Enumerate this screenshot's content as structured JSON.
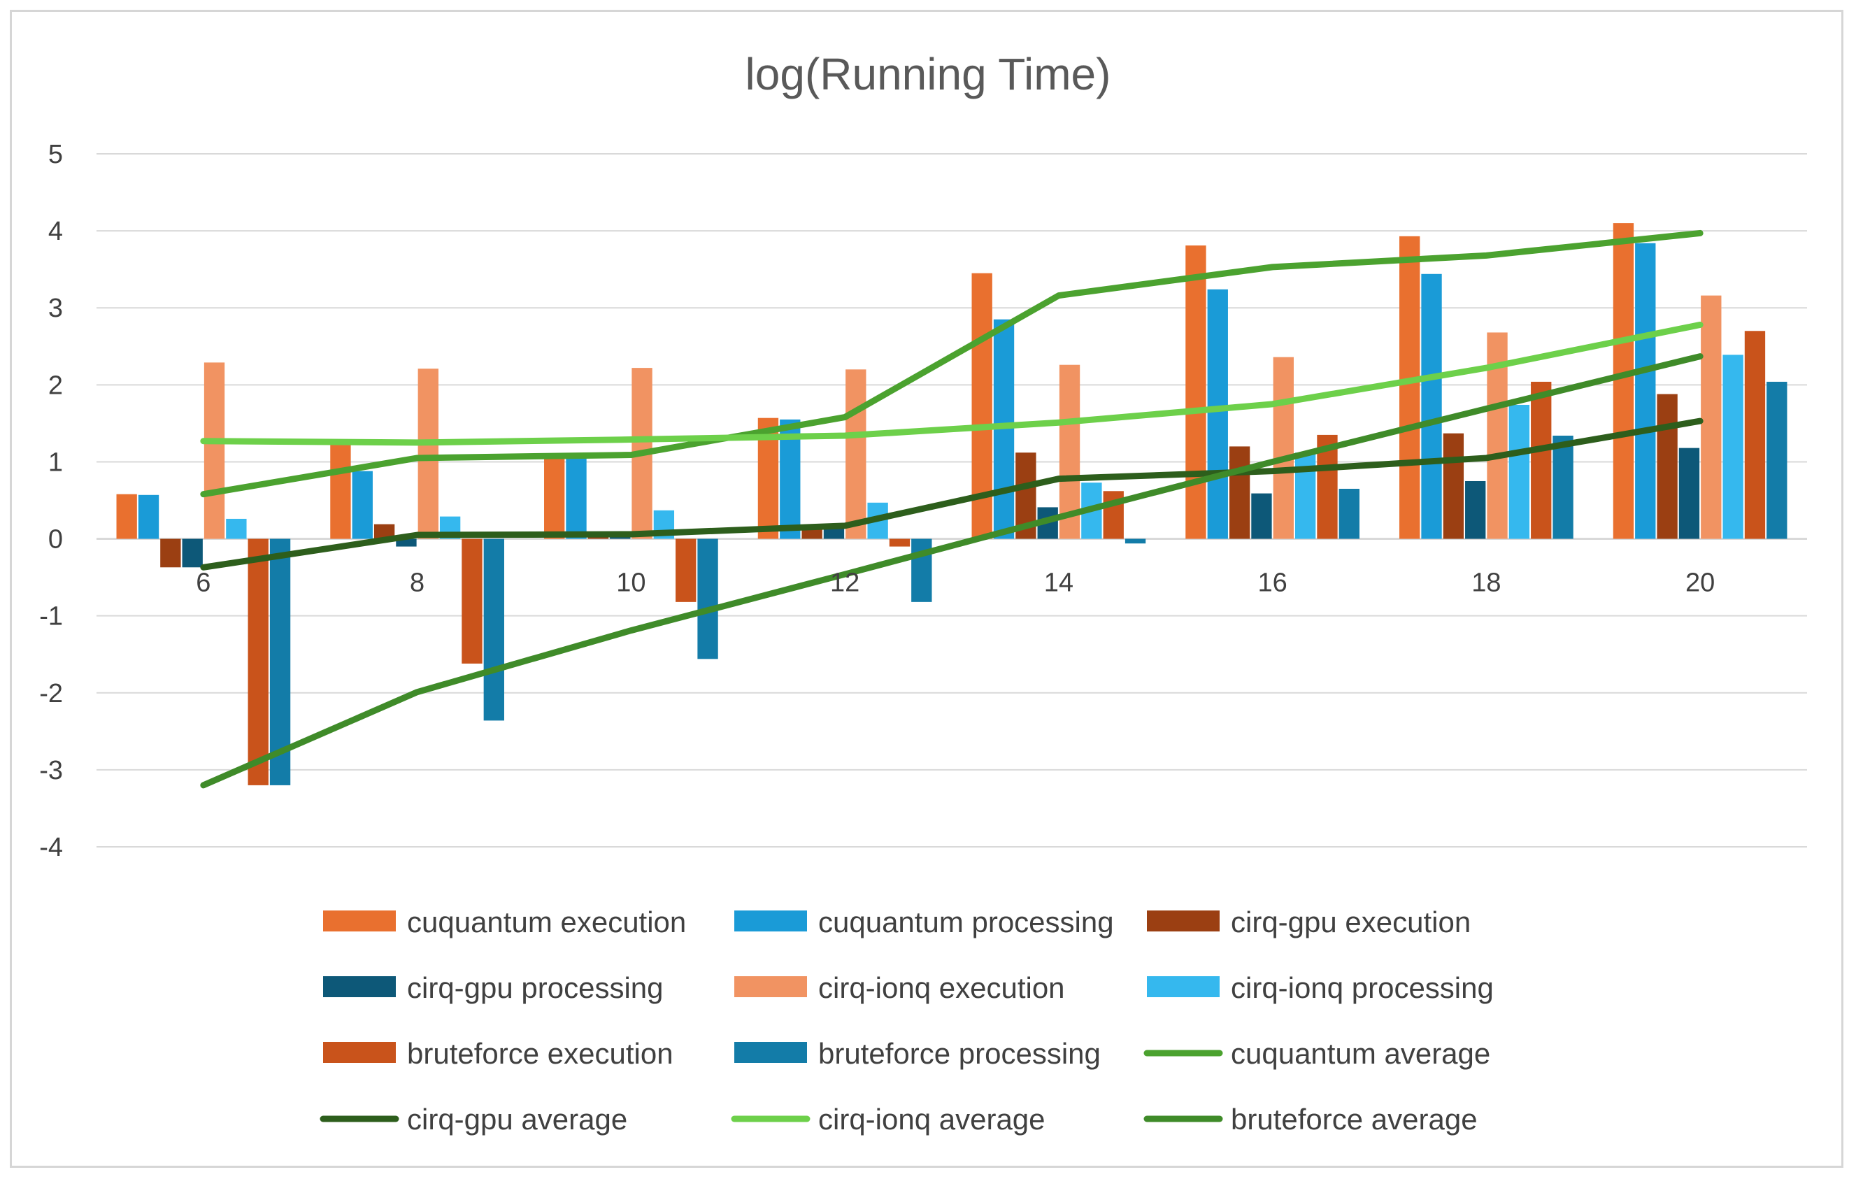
{
  "chart_data": {
    "type": "bar",
    "title": "log(Running Time)",
    "xlabel": "",
    "ylabel": "",
    "ylim": [
      -4,
      5
    ],
    "yticks": [
      "5",
      "4",
      "3",
      "2",
      "1",
      "0",
      "-1",
      "-2",
      "-3",
      "-4"
    ],
    "categories": [
      "6",
      "8",
      "10",
      "12",
      "14",
      "16",
      "18",
      "20"
    ],
    "grid": true,
    "legend_position": "bottom",
    "series": [
      {
        "name": "cuquantum execution",
        "kind": "bar",
        "color": "#e9702f",
        "values": [
          0.58,
          1.25,
          1.09,
          1.57,
          3.45,
          3.81,
          3.93,
          4.1
        ]
      },
      {
        "name": "cuquantum processing",
        "kind": "bar",
        "color": "#1a9bd7",
        "values": [
          0.57,
          0.88,
          1.06,
          1.55,
          2.85,
          3.24,
          3.44,
          3.84
        ]
      },
      {
        "name": "cirq-gpu execution",
        "kind": "bar",
        "color": "#9b3f12",
        "values": [
          -0.37,
          0.19,
          0.05,
          0.16,
          1.12,
          1.2,
          1.37,
          1.88
        ]
      },
      {
        "name": "cirq-gpu processing",
        "kind": "bar",
        "color": "#0d5878",
        "values": [
          -0.37,
          -0.1,
          0.05,
          0.17,
          0.41,
          0.59,
          0.75,
          1.18
        ]
      },
      {
        "name": "cirq-ionq execution",
        "kind": "bar",
        "color": "#f19362",
        "values": [
          2.29,
          2.21,
          2.22,
          2.2,
          2.26,
          2.36,
          2.68,
          3.16
        ]
      },
      {
        "name": "cirq-ionq processing",
        "kind": "bar",
        "color": "#35b8ee",
        "values": [
          0.26,
          0.29,
          0.37,
          0.47,
          0.73,
          1.12,
          1.74,
          2.39
        ]
      },
      {
        "name": "bruteforce execution",
        "kind": "bar",
        "color": "#c9531b",
        "values": [
          -3.2,
          -1.62,
          -0.82,
          -0.1,
          0.62,
          1.35,
          2.04,
          2.7
        ]
      },
      {
        "name": "bruteforce processing",
        "kind": "bar",
        "color": "#137ca8",
        "values": [
          -3.2,
          -2.36,
          -1.56,
          -0.82,
          -0.06,
          0.65,
          1.34,
          2.04
        ]
      },
      {
        "name": "cuquantum average",
        "kind": "line",
        "color": "#4ba22f",
        "values": [
          0.58,
          1.05,
          1.09,
          1.58,
          3.16,
          3.53,
          3.68,
          3.97
        ]
      },
      {
        "name": "cirq-gpu average",
        "kind": "line",
        "color": "#2d5e1c",
        "values": [
          -0.37,
          0.05,
          0.06,
          0.17,
          0.78,
          0.88,
          1.05,
          1.53
        ]
      },
      {
        "name": "cirq-ionq average",
        "kind": "line",
        "color": "#6dd04a",
        "values": [
          1.27,
          1.25,
          1.29,
          1.34,
          1.51,
          1.75,
          2.22,
          2.78
        ]
      },
      {
        "name": "bruteforce average",
        "kind": "line",
        "color": "#3f8b29",
        "values": [
          -3.2,
          -1.99,
          -1.19,
          -0.46,
          0.28,
          1.0,
          1.69,
          2.37
        ]
      }
    ]
  }
}
